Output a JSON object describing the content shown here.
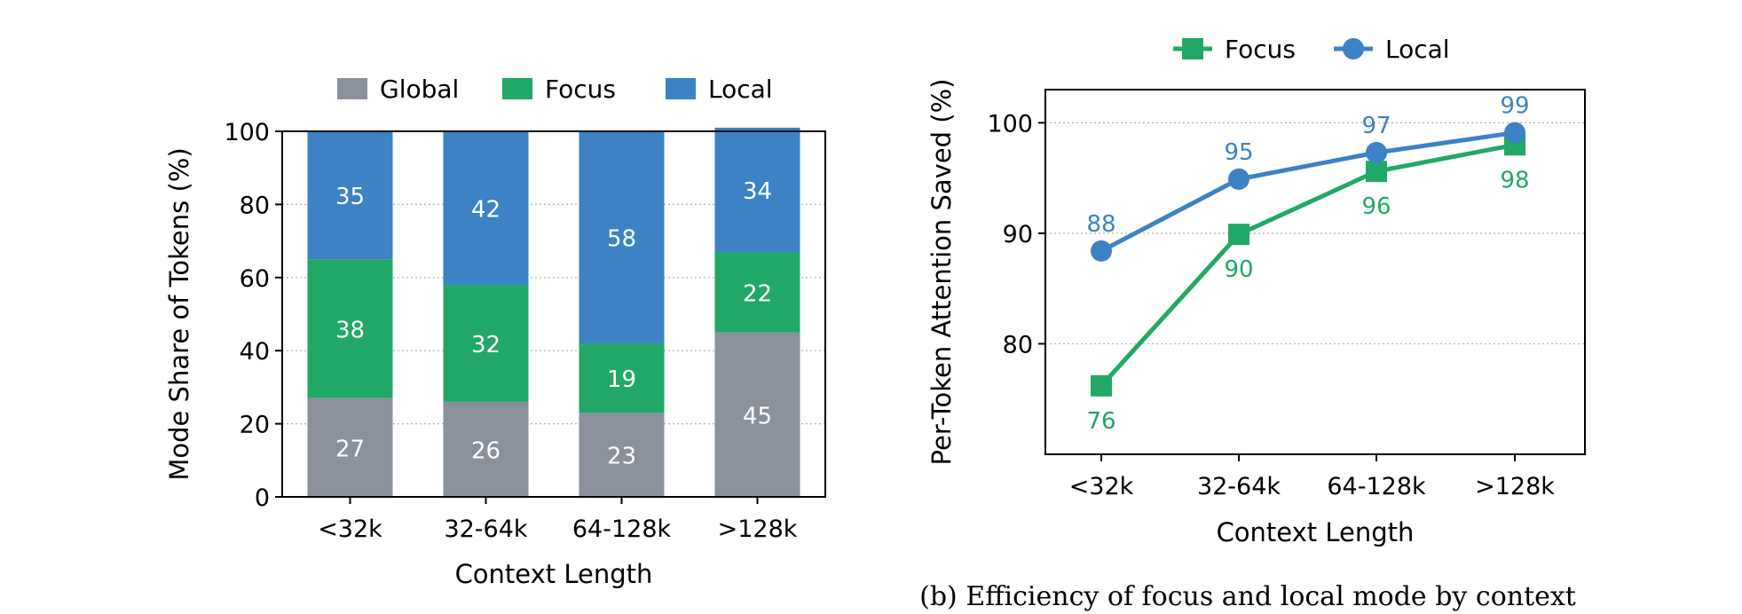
{
  "colors": {
    "global": "#8a919c",
    "focus": "#21a866",
    "local": "#3c82c4",
    "grid": "#b0b0b0",
    "axis": "#000000"
  },
  "chart_data": [
    {
      "type": "bar",
      "stacked": true,
      "title": "",
      "xlabel": "Context Length",
      "ylabel": "Mode Share of Tokens (%)",
      "categories": [
        "<32k",
        "32-64k",
        "64-128k",
        ">128k"
      ],
      "ylim": [
        0,
        100
      ],
      "yticks": [
        0,
        20,
        40,
        60,
        80,
        100
      ],
      "grid": "horizontal dotted",
      "legend_position": "top-center",
      "series": [
        {
          "name": "Global",
          "values": [
            27,
            26,
            23,
            45
          ],
          "color": "#8a919c"
        },
        {
          "name": "Focus",
          "values": [
            38,
            32,
            19,
            22
          ],
          "color": "#21a866"
        },
        {
          "name": "Local",
          "values": [
            35,
            42,
            58,
            34
          ],
          "color": "#3c82c4"
        }
      ]
    },
    {
      "type": "line",
      "title": "",
      "xlabel": "Context Length",
      "ylabel": "Per-Token Attention Saved (%)",
      "categories": [
        "<32k",
        "32-64k",
        "64-128k",
        ">128k"
      ],
      "ylim": [
        70,
        103
      ],
      "yticks": [
        80,
        90,
        100
      ],
      "grid": "horizontal dotted",
      "legend_position": "top-center",
      "series": [
        {
          "name": "Focus",
          "values": [
            76,
            90,
            96,
            98
          ],
          "exact": [
            76.2,
            89.9,
            95.6,
            98.0
          ],
          "marker": "square",
          "color": "#21a866"
        },
        {
          "name": "Local",
          "values": [
            88,
            95,
            97,
            99
          ],
          "exact": [
            88.4,
            94.9,
            97.3,
            99.1
          ],
          "marker": "circle",
          "color": "#3c82c4"
        }
      ],
      "caption": "(b) Efficiency of focus and local mode by context"
    }
  ]
}
